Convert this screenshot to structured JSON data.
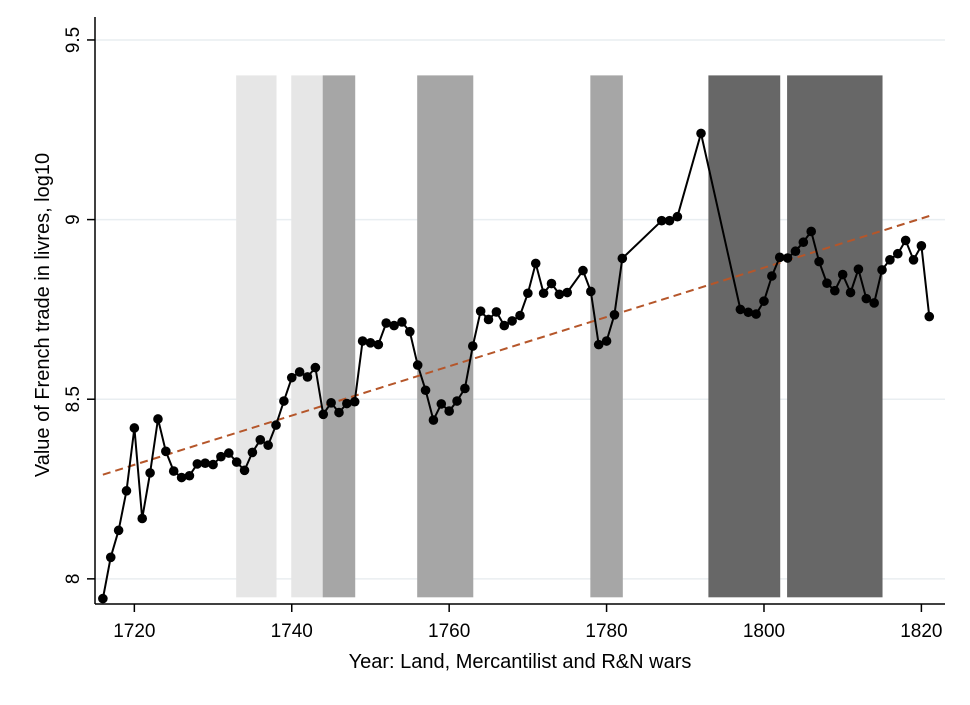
{
  "chart_data": {
    "type": "line",
    "title": "",
    "xlabel": "Year: Land, Mercantilist and R&N wars",
    "ylabel": "Value of French trade in livres, log10",
    "xlim": [
      1715,
      1823
    ],
    "ylim": [
      7.93,
      9.55
    ],
    "x_ticks": [
      1720,
      1740,
      1760,
      1780,
      1800,
      1820
    ],
    "x_tick_labels": [
      "1720",
      "1740",
      "1760",
      "1780",
      "1800",
      "1820"
    ],
    "y_ticks": [
      8,
      8.5,
      9,
      9.5
    ],
    "y_tick_labels": [
      "8",
      "8.5",
      "9",
      "9.5"
    ],
    "grid": "horizontal",
    "legend": "none",
    "colors": {
      "series": "#000000",
      "trend": "#b5562a",
      "war_light": "#e6e6e6",
      "war_medium": "#a6a6a6",
      "war_dark": "#676767",
      "grid": "#e9eef1"
    },
    "war_periods": [
      {
        "start": 1733,
        "end": 1738,
        "shade": "light"
      },
      {
        "start": 1740,
        "end": 1744,
        "shade": "light"
      },
      {
        "start": 1744,
        "end": 1748,
        "shade": "medium"
      },
      {
        "start": 1756,
        "end": 1763,
        "shade": "medium"
      },
      {
        "start": 1778,
        "end": 1782,
        "shade": "medium"
      },
      {
        "start": 1793,
        "end": 1802,
        "shade": "dark"
      },
      {
        "start": 1803,
        "end": 1815,
        "shade": "dark"
      }
    ],
    "trend_line": {
      "x": [
        1716,
        1821
      ],
      "y": [
        8.29,
        9.01
      ]
    },
    "series": [
      {
        "x": [
          1716,
          1717,
          1718,
          1719,
          1720,
          1721,
          1722,
          1723,
          1724,
          1725,
          1726,
          1727,
          1728,
          1729,
          1730,
          1731,
          1732,
          1733,
          1734,
          1735,
          1736,
          1737,
          1738,
          1739,
          1740,
          1741,
          1742,
          1743,
          1744,
          1745,
          1746,
          1747,
          1748,
          1749,
          1750,
          1751,
          1752,
          1753,
          1754,
          1755,
          1756,
          1757,
          1758,
          1759,
          1760,
          1761,
          1762,
          1763,
          1764,
          1765,
          1766,
          1767,
          1768,
          1769,
          1770,
          1771,
          1772,
          1773,
          1774,
          1775,
          1777,
          1778,
          1779,
          1780,
          1781,
          1782,
          1787,
          1788,
          1789,
          1792,
          1797,
          1798,
          1799,
          1800,
          1801,
          1802,
          1803,
          1804,
          1805,
          1806,
          1807,
          1808,
          1809,
          1810,
          1811,
          1812,
          1813,
          1814,
          1815,
          1816,
          1817,
          1818,
          1819,
          1820,
          1821
        ],
        "y": [
          7.945,
          8.06,
          8.135,
          8.245,
          8.42,
          8.168,
          8.295,
          8.445,
          8.355,
          8.3,
          8.282,
          8.287,
          8.32,
          8.322,
          8.318,
          8.34,
          8.35,
          8.325,
          8.302,
          8.352,
          8.387,
          8.372,
          8.428,
          8.495,
          8.56,
          8.576,
          8.562,
          8.588,
          8.458,
          8.49,
          8.463,
          8.488,
          8.493,
          8.662,
          8.657,
          8.652,
          8.712,
          8.705,
          8.715,
          8.688,
          8.595,
          8.525,
          8.442,
          8.487,
          8.467,
          8.495,
          8.53,
          8.648,
          8.745,
          8.722,
          8.743,
          8.705,
          8.718,
          8.733,
          8.795,
          8.878,
          8.795,
          8.822,
          8.792,
          8.797,
          8.858,
          8.8,
          8.652,
          8.662,
          8.735,
          8.892,
          8.997,
          8.997,
          9.008,
          9.24,
          8.75,
          8.742,
          8.737,
          8.773,
          8.843,
          8.895,
          8.893,
          8.912,
          8.937,
          8.967,
          8.883,
          8.823,
          8.802,
          8.847,
          8.797,
          8.862,
          8.78,
          8.768,
          8.86,
          8.888,
          8.905,
          8.942,
          8.888,
          8.927,
          8.73
        ]
      }
    ]
  }
}
